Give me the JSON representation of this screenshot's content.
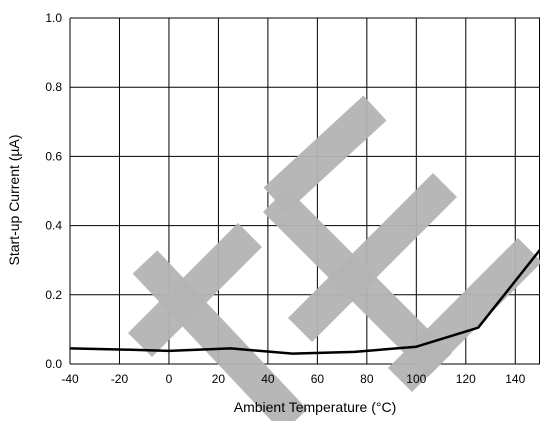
{
  "chart_data": {
    "type": "line",
    "xlabel": "Ambient Temperature (°C)",
    "ylabel": "Start-up Current (µA)",
    "xlim": [
      -40,
      150
    ],
    "ylim": [
      0,
      1.0
    ],
    "x_ticks": [
      "-40",
      "-20",
      "0",
      "20",
      "40",
      "60",
      "80",
      "100",
      "120",
      "140"
    ],
    "y_ticks": [
      "0.0",
      "0.2",
      "0.4",
      "0.6",
      "0.8",
      "1.0"
    ],
    "grid": true,
    "series": [
      {
        "color": "#000000",
        "x": [
          -40,
          -20,
          0,
          25,
          50,
          75,
          100,
          125,
          150
        ],
        "y": [
          0.045,
          0.042,
          0.038,
          0.045,
          0.03,
          0.035,
          0.05,
          0.105,
          0.33
        ]
      }
    ],
    "watermark": {
      "text": "TE",
      "color": "#b4b4b4"
    }
  }
}
